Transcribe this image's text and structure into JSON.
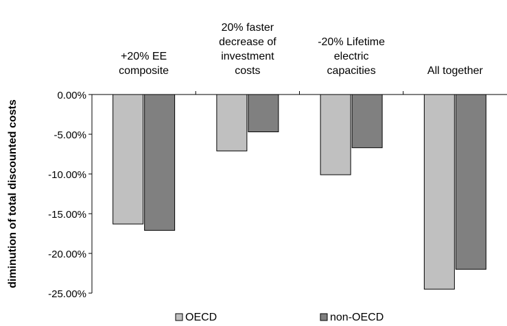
{
  "chart_data": {
    "type": "bar",
    "categories": [
      [
        "+20% EE",
        "composite"
      ],
      [
        "20% faster",
        "decrease of",
        "investment",
        "costs"
      ],
      [
        "-20% Lifetime",
        "electric",
        "capacities"
      ],
      [
        "All together"
      ]
    ],
    "series": [
      {
        "name": "OECD",
        "color": "#c0c0c0",
        "values": [
          -16.3,
          -7.1,
          -10.1,
          -24.5
        ]
      },
      {
        "name": "non-OECD",
        "color": "#808080",
        "values": [
          -17.1,
          -4.7,
          -6.7,
          -22.0
        ]
      }
    ],
    "ylabel": "diminution of total discounted costs",
    "ylim": [
      -25,
      0
    ],
    "yticks": [
      0,
      -5,
      -10,
      -15,
      -20,
      -25
    ],
    "ytick_labels": [
      "0.00%",
      "-5.00%",
      "-10.00%",
      "-15.00%",
      "-20.00%",
      "-25.00%"
    ],
    "grid": false,
    "legend_position": "bottom"
  }
}
